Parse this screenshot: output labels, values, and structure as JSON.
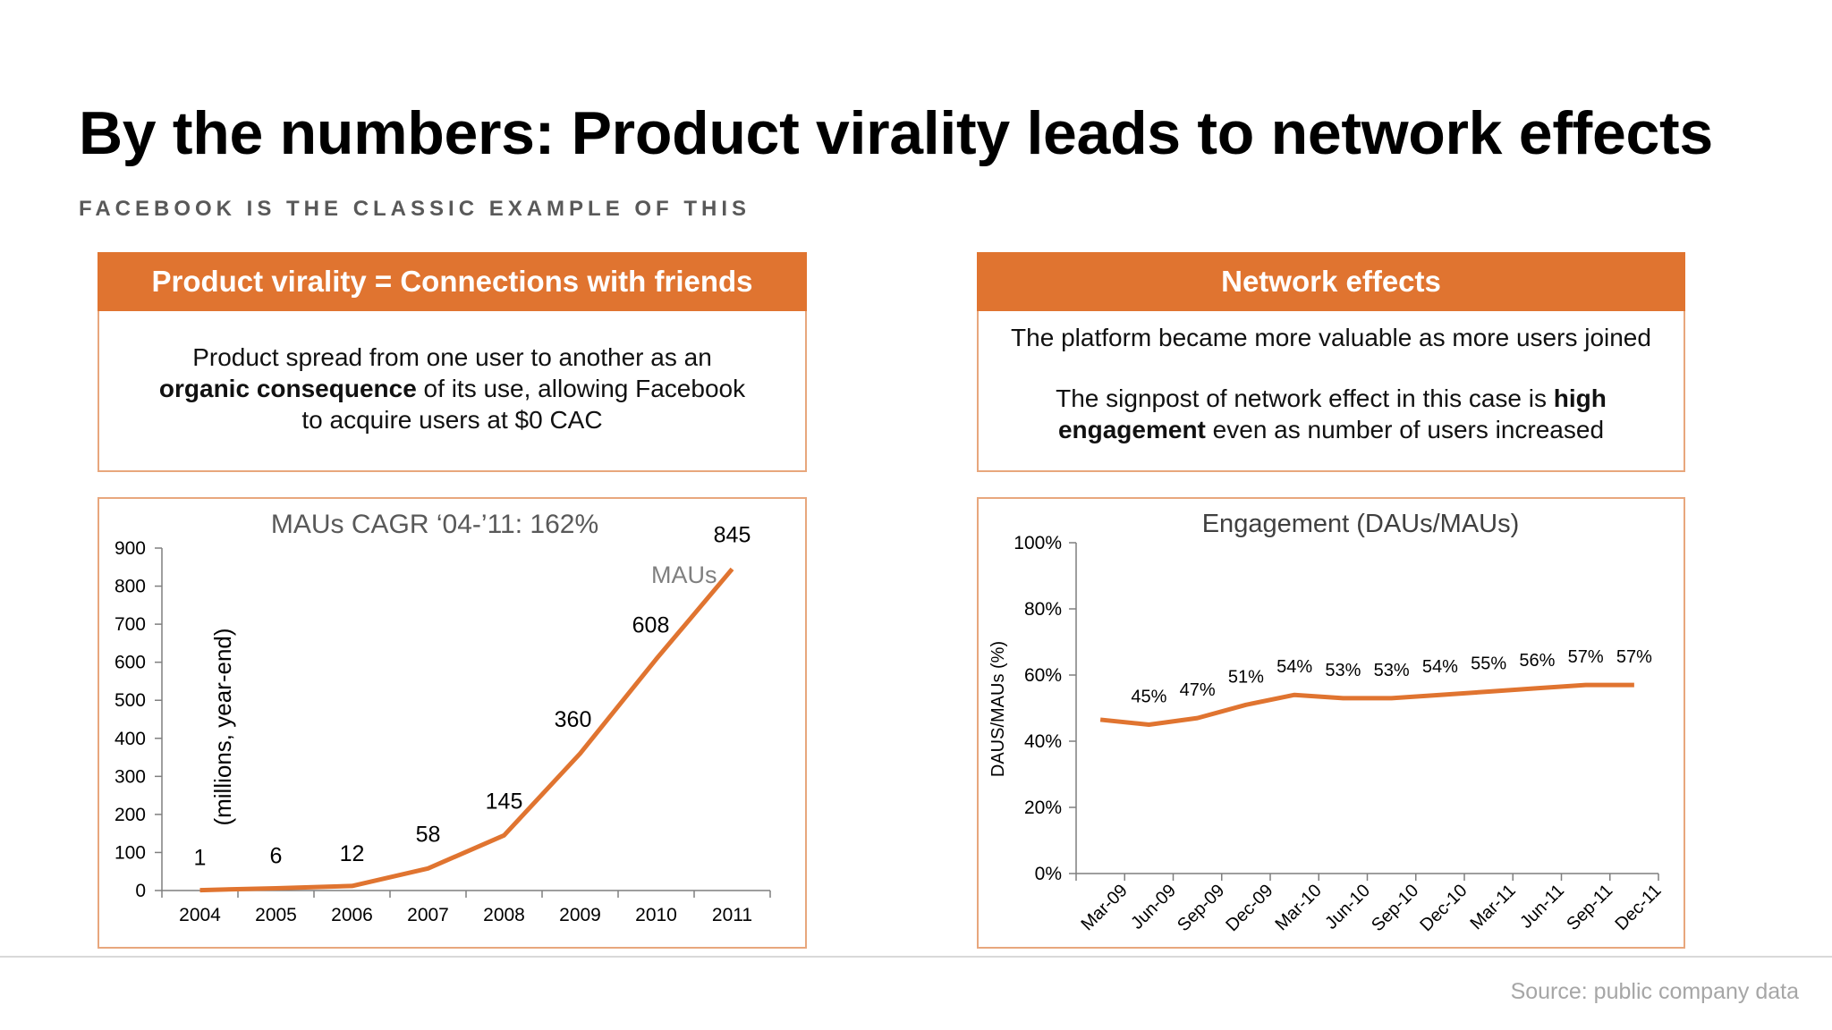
{
  "slide": {
    "title": "By the numbers: Product virality leads to network effects",
    "subtitle": "FACEBOOK IS THE CLASSIC EXAMPLE OF THIS",
    "source": "Source: public company data",
    "accent_color": "#e07430",
    "border_color": "#e8a77d"
  },
  "left_panel": {
    "header": "Product virality = Connections with friends",
    "text_1": "Product spread from one user to another as an",
    "bold_1": "organic consequence",
    "text_2": " of its use, allowing Facebook",
    "text_3": "to acquire users at $0 CAC"
  },
  "right_panel": {
    "header": "Network effects",
    "line_1": "The platform became more valuable as more users joined",
    "text_2": "The signpost of network effect in this case is ",
    "bold_2a": "high",
    "bold_2b": "engagement",
    "text_3": " even as number of users increased"
  },
  "chart_data": [
    {
      "type": "line",
      "title": "MAUs CAGR ‘04-’11: 162%",
      "ylabel": "(millions, year-end)",
      "xlabel": "",
      "series_label": "MAUs",
      "categories": [
        "2004",
        "2005",
        "2006",
        "2007",
        "2008",
        "2009",
        "2010",
        "2011"
      ],
      "values": [
        1,
        6,
        12,
        58,
        145,
        360,
        608,
        845
      ],
      "data_labels": [
        "1",
        "6",
        "12",
        "58",
        "145",
        "360",
        "608",
        "845"
      ],
      "ylim": [
        0,
        900
      ],
      "yticks": [
        "0",
        "100",
        "200",
        "300",
        "400",
        "500",
        "600",
        "700",
        "800",
        "900"
      ],
      "grid": false,
      "color": "#e07430"
    },
    {
      "type": "line",
      "title": "Engagement (DAUs/MAUs)",
      "ylabel": "DAUS/MAUs (%)",
      "xlabel": "",
      "categories": [
        "Mar-09",
        "Jun-09",
        "Sep-09",
        "Dec-09",
        "Mar-10",
        "Jun-10",
        "Sep-10",
        "Dec-10",
        "Mar-11",
        "Jun-11",
        "Sep-11",
        "Dec-11"
      ],
      "values": [
        46.5,
        45,
        47,
        51,
        54,
        53,
        53,
        54,
        55,
        56,
        57,
        57
      ],
      "data_labels": [
        "",
        "45%",
        "47%",
        "51%",
        "54%",
        "53%",
        "53%",
        "54%",
        "55%",
        "56%",
        "57%",
        "57%"
      ],
      "ylim": [
        0,
        100
      ],
      "yticks": [
        "0%",
        "20%",
        "40%",
        "60%",
        "80%",
        "100%"
      ],
      "grid": false,
      "color": "#e07430"
    }
  ]
}
